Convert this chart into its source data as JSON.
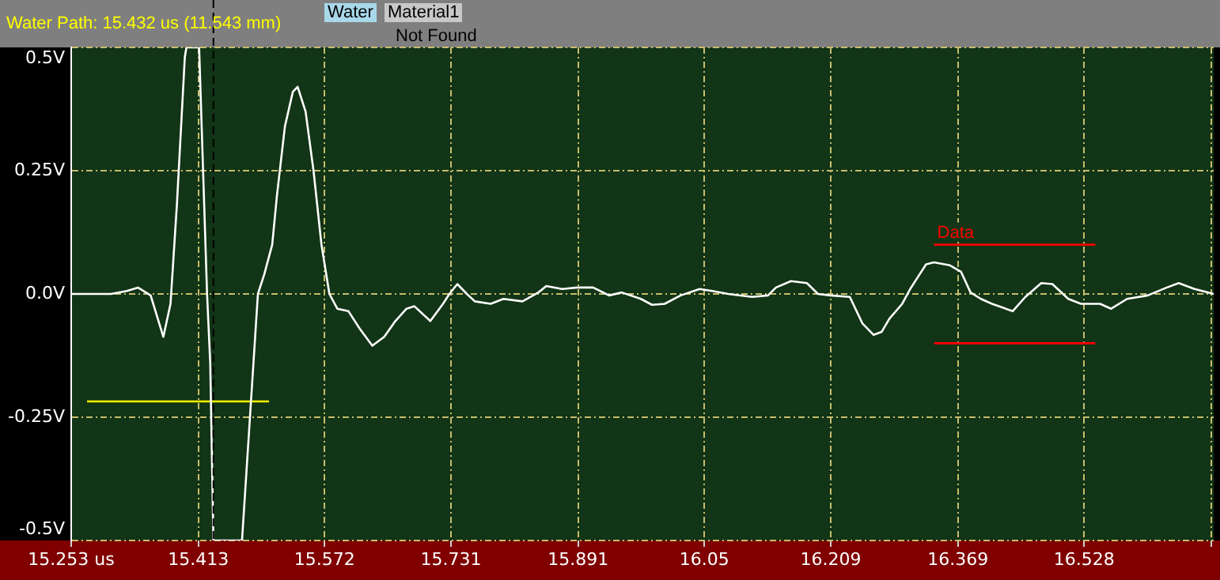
{
  "chart_data": {
    "type": "line",
    "title": "Water Path: 15.432 us (11.543 mm)",
    "annotations": [
      "Water",
      "Material1",
      "Not Found"
    ],
    "xlim": [
      15.253,
      16.691
    ],
    "xticks": [
      {
        "value": 15.253,
        "label": "15.253 us"
      },
      15.413,
      15.572,
      15.731,
      15.891,
      16.05,
      16.209,
      16.369,
      16.528,
      {
        "value": 16.688,
        "label": null
      }
    ],
    "ylim": [
      -0.5,
      0.5
    ],
    "yticks": [
      {
        "value": -0.5,
        "label": "-0.5V"
      },
      {
        "value": -0.25,
        "label": "-0.25V"
      },
      {
        "value": 0,
        "label": "0.0V"
      },
      {
        "value": 0.25,
        "label": "0.25V"
      },
      {
        "value": 0.5,
        "label": "0.5V"
      }
    ],
    "grid": true,
    "legend": false,
    "marker": "none",
    "line_style": "solid",
    "ref_lines": [
      {
        "axis": "x",
        "value": 15.432,
        "color": "#000000",
        "line_style": "dashed"
      }
    ],
    "series": [
      {
        "color": "#ffffff",
        "x": [
          15.253,
          15.303,
          15.323,
          15.337,
          15.353,
          15.369,
          15.378,
          15.386,
          15.396,
          15.398,
          15.412,
          15.414,
          15.424,
          15.428,
          15.432,
          15.468,
          15.478,
          15.488,
          15.496,
          15.506,
          15.512,
          15.522,
          15.532,
          15.538,
          15.548,
          15.558,
          15.568,
          15.578,
          15.588,
          15.602,
          15.616,
          15.632,
          15.647,
          15.661,
          15.675,
          15.685,
          15.705,
          15.721,
          15.729,
          15.739,
          15.751,
          15.761,
          15.781,
          15.797,
          15.821,
          15.841,
          15.851,
          15.871,
          15.89,
          15.91,
          15.93,
          15.946,
          15.97,
          15.984,
          16.0,
          16.02,
          16.044,
          16.06,
          16.08,
          16.11,
          16.13,
          16.14,
          16.159,
          16.179,
          16.193,
          16.209,
          16.233,
          16.249,
          16.263,
          16.273,
          16.283,
          16.299,
          16.309,
          16.319,
          16.329,
          16.339,
          16.359,
          16.373,
          16.385,
          16.398,
          16.412,
          16.438,
          16.454,
          16.474,
          16.488,
          16.508,
          16.524,
          16.548,
          16.562,
          16.582,
          16.608,
          16.632,
          16.647,
          16.667,
          16.691
        ],
        "values": [
          0,
          0,
          0.006,
          0.013,
          -0.003,
          -0.087,
          -0.02,
          0.18,
          0.48,
          0.5,
          0.5,
          0.5,
          0,
          -0.14,
          -0.5,
          -0.5,
          -0.25,
          0,
          0.04,
          0.1,
          0.2,
          0.34,
          0.41,
          0.42,
          0.37,
          0.25,
          0.1,
          0,
          -0.03,
          -0.035,
          -0.07,
          -0.105,
          -0.087,
          -0.055,
          -0.03,
          -0.025,
          -0.055,
          -0.02,
          0,
          0.02,
          0,
          -0.015,
          -0.02,
          -0.01,
          -0.015,
          0.003,
          0.016,
          0.01,
          0.013,
          0.013,
          -0.003,
          0.003,
          -0.01,
          -0.022,
          -0.02,
          -0.003,
          0.01,
          0.006,
          0,
          -0.006,
          -0.003,
          0.013,
          0.026,
          0.022,
          0,
          -0.003,
          -0.006,
          -0.06,
          -0.083,
          -0.077,
          -0.05,
          -0.02,
          0.01,
          0.035,
          0.06,
          0.064,
          0.058,
          0.045,
          0.003,
          -0.01,
          -0.02,
          -0.035,
          -0.006,
          0.022,
          0.02,
          -0.01,
          -0.02,
          -0.02,
          -0.03,
          -0.01,
          -0.003,
          0.013,
          0.022,
          0.01,
          0
        ]
      },
      {
        "color": "#ffff00",
        "x": [
          15.273,
          15.502
        ],
        "values": [
          -0.218,
          -0.218
        ]
      },
      {
        "name": "Data",
        "color": "#ff0000",
        "x": [
          16.339,
          16.542
        ],
        "values": [
          0.1,
          0.1
        ]
      },
      {
        "color": "#ff0000",
        "x": [
          16.339,
          16.542
        ],
        "values": [
          -0.1,
          -0.1
        ]
      }
    ]
  }
}
